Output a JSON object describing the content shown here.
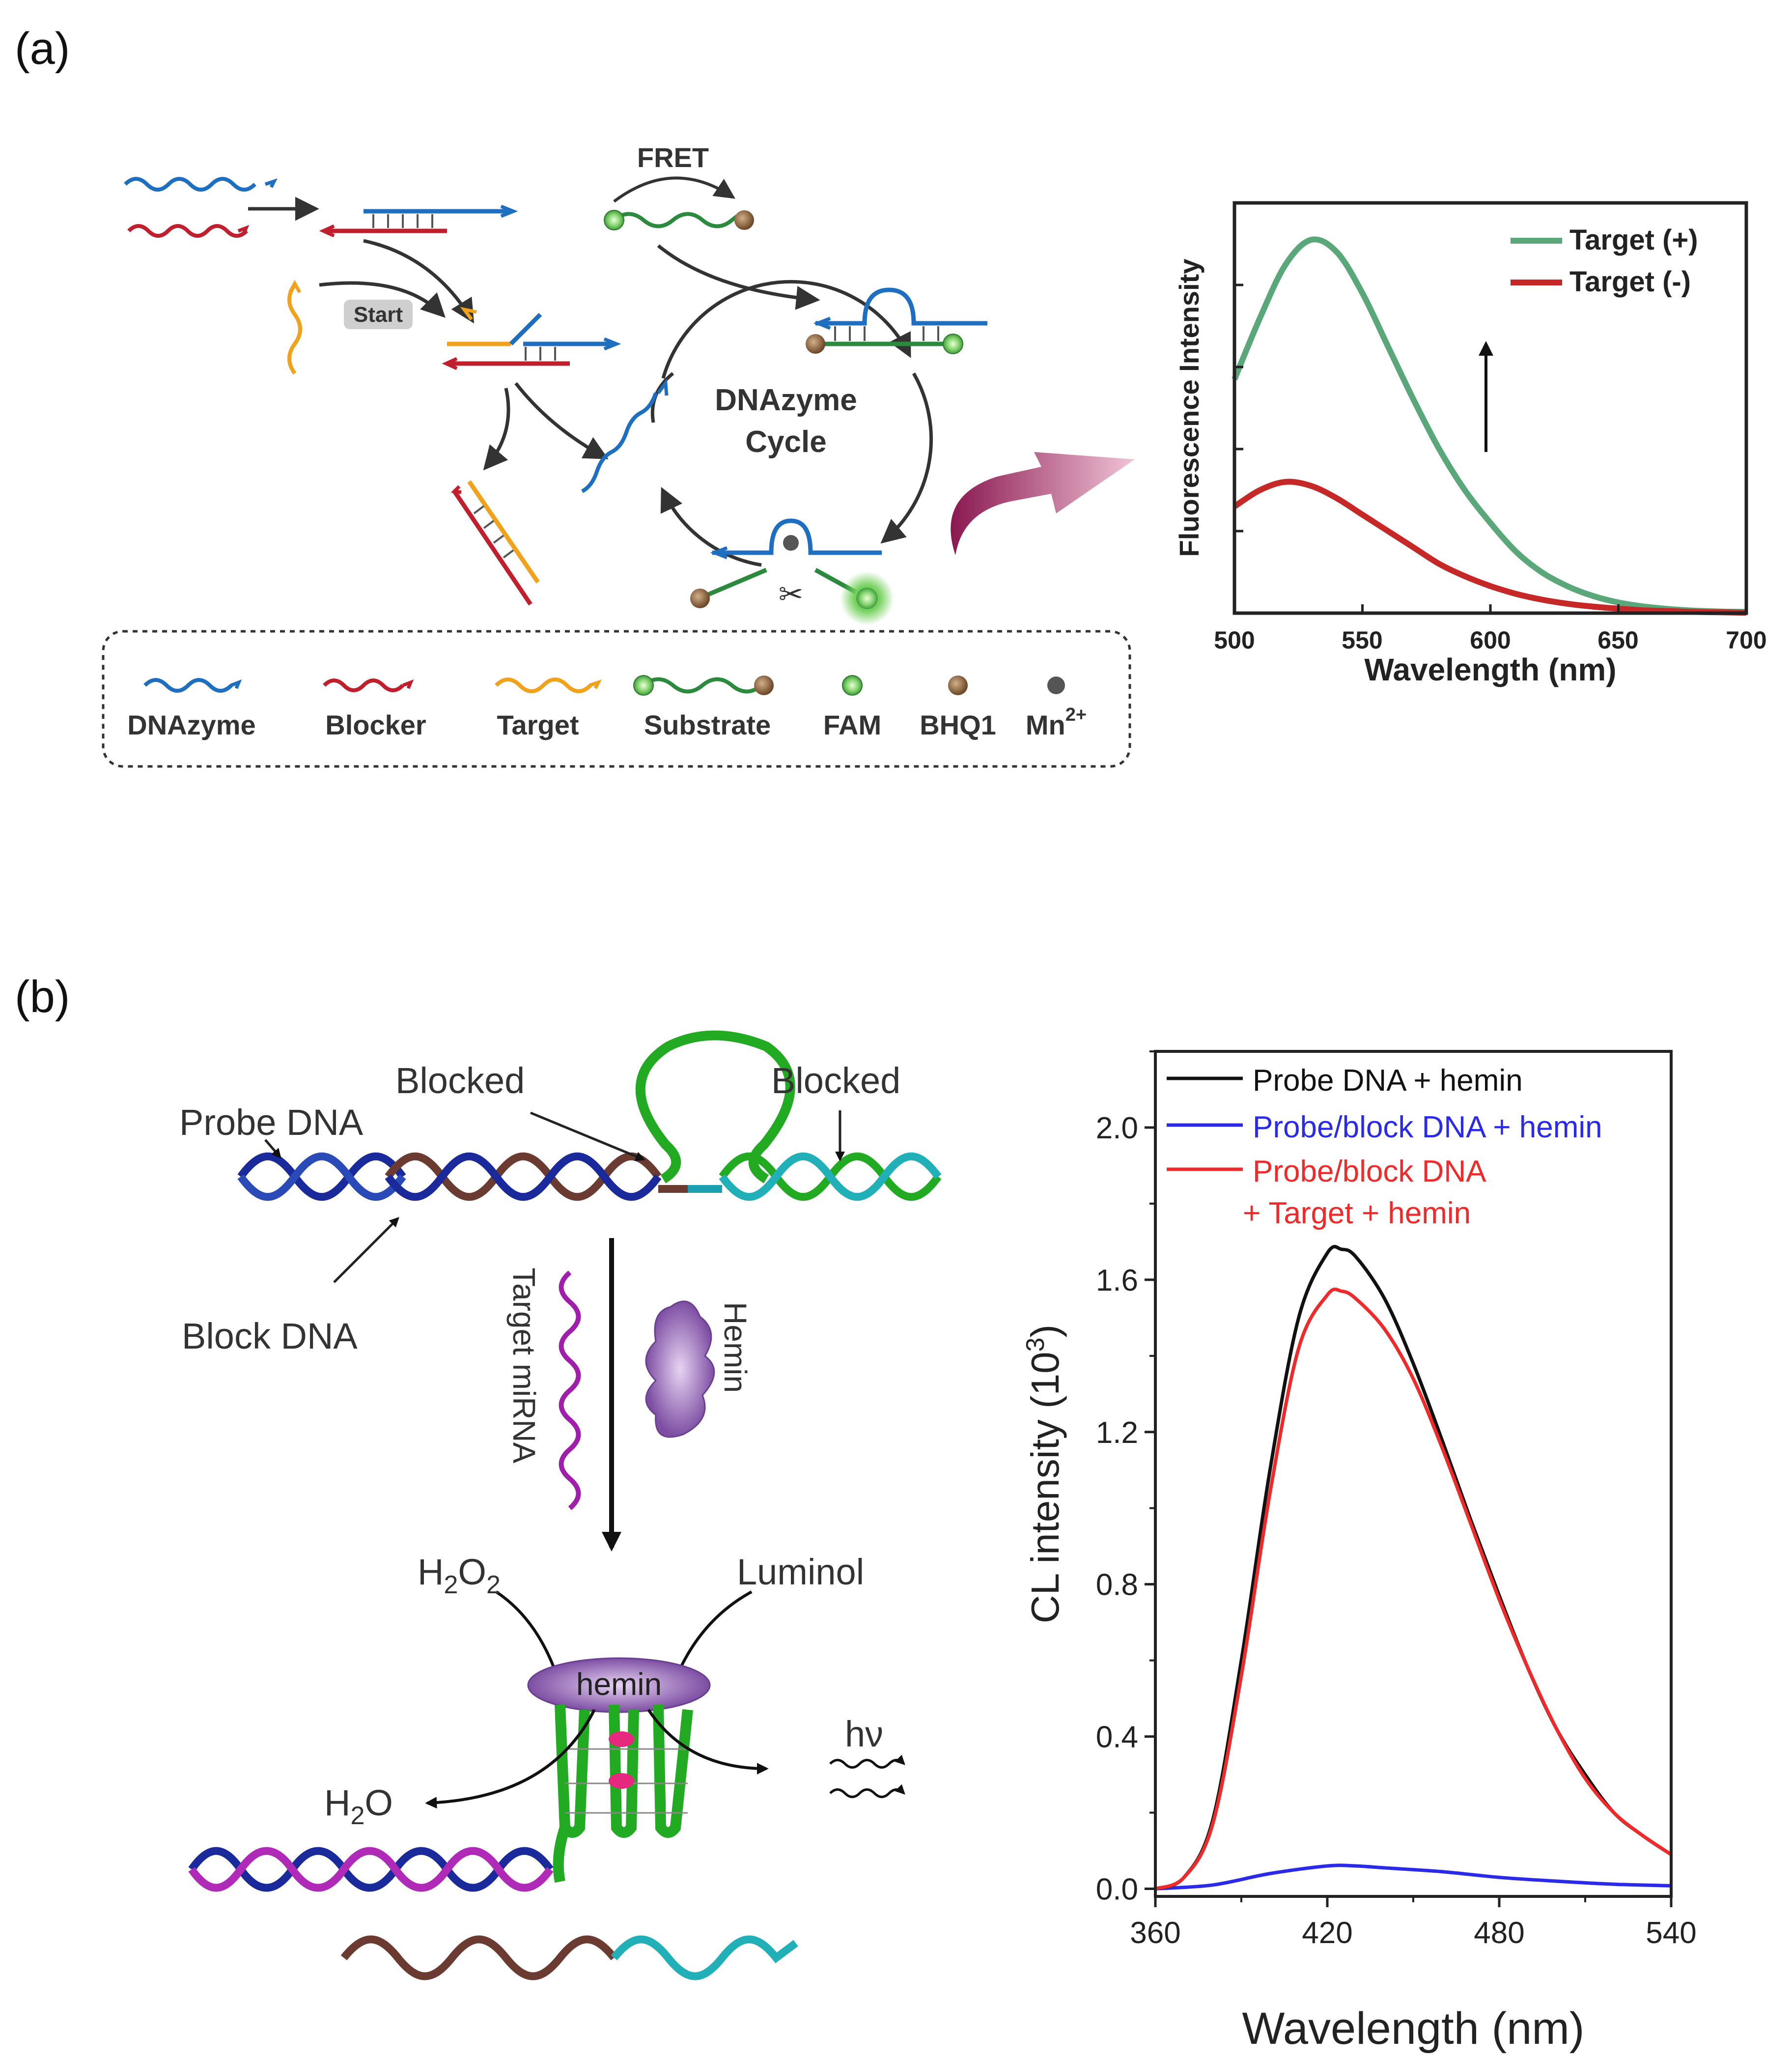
{
  "panel_a": {
    "label": "(a)",
    "diagram": {
      "fret": "FRET",
      "start": "Start",
      "cycle_line1": "DNAzyme",
      "cycle_line2": "Cycle",
      "legend": [
        "DNAzyme",
        "Blocker",
        "Target",
        "Substrate",
        "FAM",
        "BHQ1",
        "Mn"
      ],
      "mn_superscript": "2+"
    },
    "colors": {
      "dnazyme": "#1f6fc0",
      "blocker": "#c0202e",
      "target": "#f0a21c",
      "substrate": "#2b8a3e",
      "fam": "#7bd36b",
      "bhq1": "#8a6040",
      "mn": "#555555"
    },
    "chart_data": {
      "type": "line",
      "xlabel": "Wavelength (nm)",
      "ylabel": "Fluorescence Intensity",
      "xlim": [
        500,
        700
      ],
      "xticks": [
        "500",
        "550",
        "600",
        "650",
        "700"
      ],
      "ylim": [
        0,
        1
      ],
      "series": [
        {
          "name": "Target (+)",
          "color": "#5aa77a",
          "x": [
            500,
            510,
            520,
            530,
            540,
            550,
            560,
            570,
            580,
            590,
            600,
            610,
            620,
            630,
            640,
            650,
            660,
            670,
            680,
            690,
            700
          ],
          "y": [
            0.57,
            0.72,
            0.85,
            0.91,
            0.88,
            0.78,
            0.65,
            0.52,
            0.4,
            0.3,
            0.22,
            0.15,
            0.1,
            0.066,
            0.042,
            0.026,
            0.016,
            0.01,
            0.006,
            0.004,
            0.003
          ]
        },
        {
          "name": "Target (-)",
          "color": "#c62828",
          "x": [
            500,
            510,
            520,
            530,
            540,
            550,
            560,
            570,
            580,
            590,
            600,
            610,
            620,
            630,
            640,
            650,
            660,
            670,
            680,
            690,
            700
          ],
          "y": [
            0.26,
            0.3,
            0.32,
            0.31,
            0.28,
            0.24,
            0.2,
            0.16,
            0.12,
            0.09,
            0.066,
            0.047,
            0.033,
            0.023,
            0.016,
            0.011,
            0.007,
            0.005,
            0.003,
            0.002,
            0.001
          ]
        }
      ]
    }
  },
  "panel_b": {
    "label": "(b)",
    "diagram": {
      "probe_dna": "Probe DNA",
      "blocked": "Blocked",
      "block_dna": "Block DNA",
      "target_mirna": "Target miRNA",
      "hemin_label": "Hemin",
      "h2o2_base": "H",
      "h2o2_sub": "2",
      "h2o2_mid": "O",
      "h2o2_sub2": "2",
      "luminol": "Luminol",
      "hemin_cap": "hemin",
      "h2o_base": "H",
      "h2o_sub": "2",
      "h2o_end": "O",
      "hv": "hν"
    },
    "chart_data": {
      "type": "line",
      "xlabel": "Wavelength (nm)",
      "ylabel": "CL intensity (10",
      "ylabel_sup": "3",
      "ylabel_end": ")",
      "xlim": [
        360,
        540
      ],
      "ylim": [
        -0.02,
        2.2
      ],
      "xticks": [
        "360",
        "420",
        "480",
        "540"
      ],
      "yticks": [
        "0.0",
        "0.4",
        "0.8",
        "1.2",
        "1.6",
        "2.0"
      ],
      "ytick_values": [
        0.0,
        0.4,
        0.8,
        1.2,
        1.6,
        2.0
      ],
      "xtick_values": [
        360,
        420,
        480,
        540
      ],
      "series": [
        {
          "name": "Probe DNA + hemin",
          "color": "#111111",
          "x": [
            360,
            370,
            380,
            390,
            400,
            410,
            420,
            425,
            430,
            440,
            450,
            460,
            470,
            480,
            490,
            500,
            510,
            520,
            530,
            540
          ],
          "y": [
            0.0,
            0.03,
            0.18,
            0.6,
            1.1,
            1.5,
            1.67,
            1.68,
            1.66,
            1.55,
            1.38,
            1.18,
            0.97,
            0.77,
            0.58,
            0.42,
            0.3,
            0.2,
            0.14,
            0.09
          ]
        },
        {
          "name": "Probe/block DNA + hemin",
          "color": "#2a2ae8",
          "x": [
            360,
            380,
            400,
            420,
            430,
            440,
            460,
            480,
            500,
            520,
            540
          ],
          "y": [
            0.0,
            0.01,
            0.04,
            0.06,
            0.06,
            0.055,
            0.045,
            0.03,
            0.02,
            0.012,
            0.008
          ]
        },
        {
          "name": "Probe/block DNA",
          "name_line2": "+ Target + hemin",
          "color": "#ee2a2a",
          "x": [
            360,
            370,
            380,
            390,
            400,
            410,
            420,
            425,
            430,
            440,
            450,
            460,
            470,
            480,
            490,
            500,
            510,
            520,
            530,
            540
          ],
          "y": [
            0.0,
            0.03,
            0.17,
            0.56,
            1.04,
            1.42,
            1.56,
            1.57,
            1.55,
            1.47,
            1.34,
            1.16,
            0.96,
            0.76,
            0.58,
            0.42,
            0.29,
            0.2,
            0.14,
            0.09
          ]
        }
      ]
    }
  }
}
